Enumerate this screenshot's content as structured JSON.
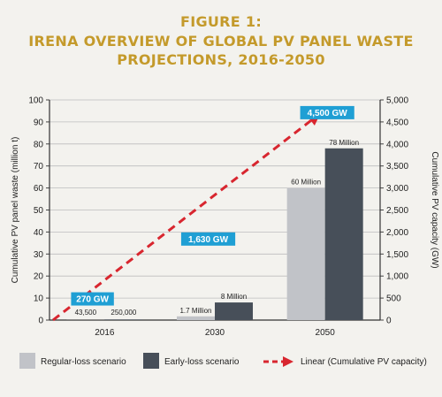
{
  "figure": {
    "label": "FIGURE 1:",
    "title_line1": "IRENA OVERVIEW OF GLOBAL PV PANEL WASTE",
    "title_line2": "PROJECTIONS, 2016-2050"
  },
  "chart_data": {
    "type": "bar",
    "categories": [
      "2016",
      "2030",
      "2050"
    ],
    "series": [
      {
        "name": "Regular-loss scenario",
        "values": [
          0.0435,
          1.7,
          60
        ],
        "labels": [
          "43,500",
          "1.7 Million",
          "60 Million"
        ],
        "color": "#c1c3c8"
      },
      {
        "name": "Early-loss scenario",
        "values": [
          0.25,
          8,
          78
        ],
        "labels": [
          "250,000",
          "8 Million",
          "78 Million"
        ],
        "color": "#474f59"
      }
    ],
    "line": {
      "name": "Linear (Cumulative PV capacity)",
      "x": [
        "2016",
        "2050"
      ],
      "y": [
        0,
        4500
      ],
      "annotations": [
        {
          "x_frac": 0.13,
          "value": 270,
          "label": "270 GW"
        },
        {
          "x_frac": 0.48,
          "value": 1630,
          "label": "1,630 GW"
        },
        {
          "x_frac": 0.84,
          "value": 4500,
          "label": "4,500 GW"
        }
      ],
      "color": "#d8262f",
      "label_bg": "#1f9fd4"
    },
    "ylabel": "Cumulative PV panel waste (million t)",
    "y2label": "Cumulative PV capacity (GW)",
    "ylim": [
      0,
      100
    ],
    "y2lim": [
      0,
      5000
    ],
    "yticks": [
      "0",
      "10",
      "20",
      "30",
      "40",
      "50",
      "60",
      "70",
      "80",
      "90",
      "100"
    ],
    "y2ticks": [
      "0",
      "500",
      "1,000",
      "1,500",
      "2,000",
      "2,500",
      "3,000",
      "3,500",
      "4,000",
      "4,500",
      "5,000"
    ],
    "grid": true,
    "legend_position": "bottom"
  }
}
